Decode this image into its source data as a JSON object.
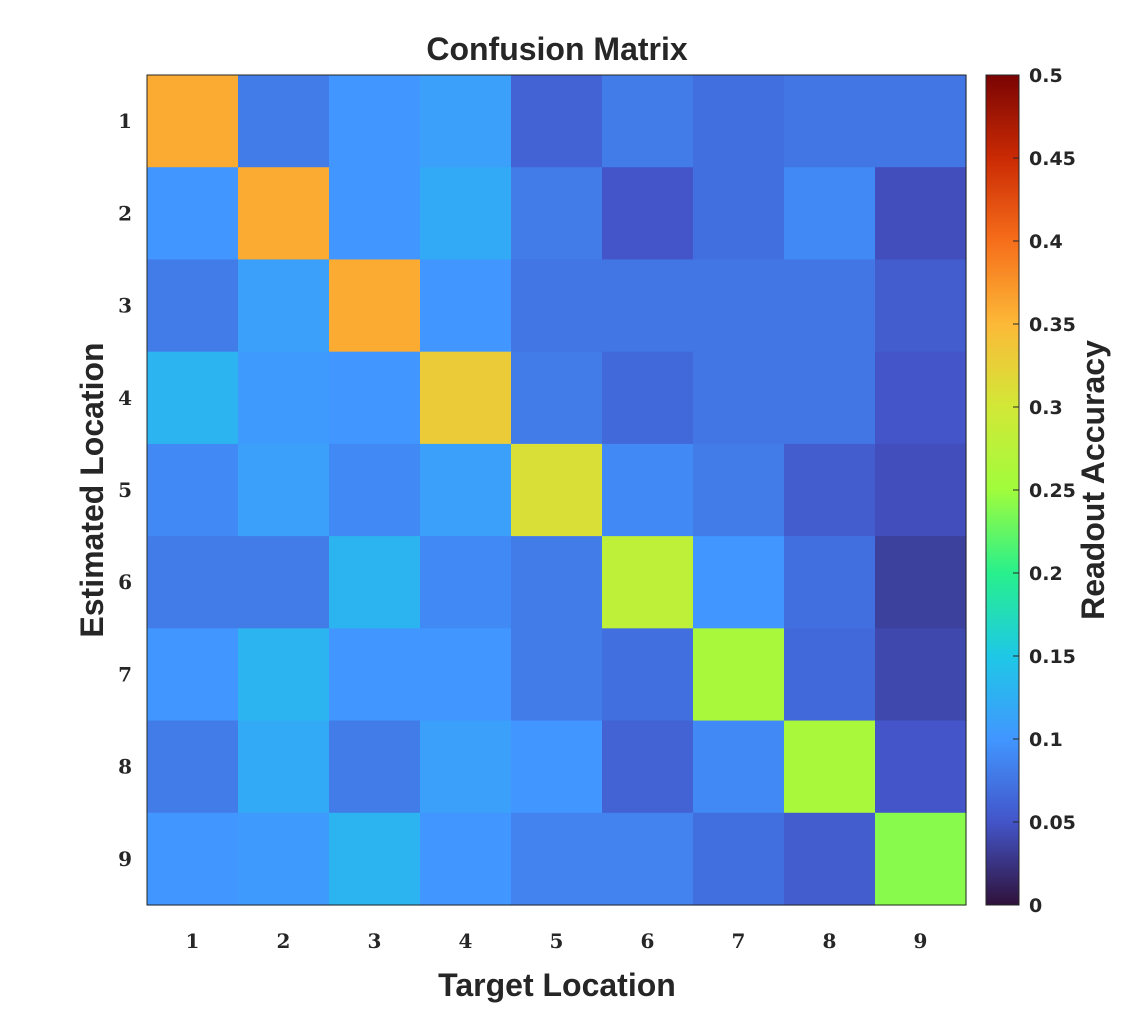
{
  "chart_data": {
    "type": "heatmap",
    "title": "Confusion Matrix",
    "xlabel": "Target Location",
    "ylabel": "Estimated Location",
    "x_categories": [
      "1",
      "2",
      "3",
      "4",
      "5",
      "6",
      "7",
      "8",
      "9"
    ],
    "y_categories": [
      "1",
      "2",
      "3",
      "4",
      "5",
      "6",
      "7",
      "8",
      "9"
    ],
    "values": [
      [
        0.36,
        0.08,
        0.1,
        0.11,
        0.06,
        0.08,
        0.07,
        0.075,
        0.075
      ],
      [
        0.1,
        0.36,
        0.1,
        0.12,
        0.08,
        0.05,
        0.07,
        0.09,
        0.045
      ],
      [
        0.08,
        0.11,
        0.36,
        0.1,
        0.075,
        0.075,
        0.075,
        0.075,
        0.055
      ],
      [
        0.13,
        0.105,
        0.1,
        0.33,
        0.08,
        0.065,
        0.075,
        0.075,
        0.05
      ],
      [
        0.09,
        0.11,
        0.09,
        0.11,
        0.31,
        0.09,
        0.08,
        0.055,
        0.045
      ],
      [
        0.08,
        0.08,
        0.13,
        0.09,
        0.08,
        0.28,
        0.1,
        0.07,
        0.035
      ],
      [
        0.1,
        0.13,
        0.1,
        0.1,
        0.08,
        0.07,
        0.26,
        0.065,
        0.04
      ],
      [
        0.08,
        0.12,
        0.08,
        0.11,
        0.1,
        0.06,
        0.09,
        0.26,
        0.05
      ],
      [
        0.1,
        0.105,
        0.13,
        0.1,
        0.085,
        0.085,
        0.07,
        0.055,
        0.24
      ]
    ],
    "colorbar": {
      "label": "Readout Accuracy",
      "range": [
        0,
        0.5
      ],
      "ticks": [
        "0",
        "0.05",
        "0.1",
        "0.15",
        "0.2",
        "0.25",
        "0.3",
        "0.35",
        "0.4",
        "0.45",
        "0.5"
      ],
      "colormap": "turbo"
    }
  }
}
